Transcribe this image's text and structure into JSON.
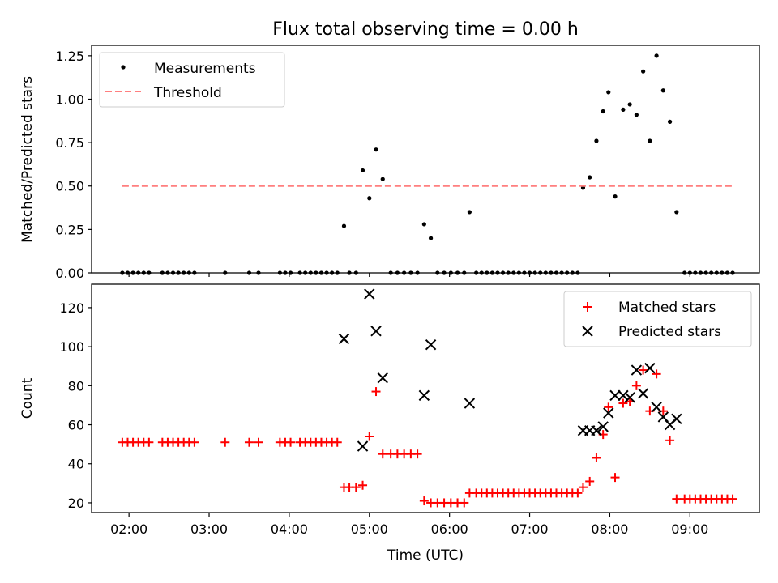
{
  "chart_data": [
    {
      "type": "scatter",
      "title": "Flux total observing time = 0.00 h",
      "xlabel": "",
      "ylabel": "Matched/Predicted stars",
      "xlim": [
        "01:32",
        "09:52"
      ],
      "ylim": [
        0,
        1.31
      ],
      "yticks": [
        0.0,
        0.25,
        0.5,
        0.75,
        1.0,
        1.25
      ],
      "ytick_labels": [
        "0.00",
        "0.25",
        "0.50",
        "0.75",
        "1.00",
        "1.25"
      ],
      "xticks": [
        "02:00",
        "03:00",
        "04:00",
        "05:00",
        "06:00",
        "07:00",
        "08:00",
        "09:00"
      ],
      "legend_position": "upper left",
      "grid": false,
      "series": [
        {
          "name": "Measurements",
          "kind": "points",
          "color": "#000000",
          "points": [
            [
              "01:55",
              0
            ],
            [
              "01:59",
              0
            ],
            [
              "02:03",
              0
            ],
            [
              "02:07",
              0
            ],
            [
              "02:11",
              0
            ],
            [
              "02:15",
              0
            ],
            [
              "02:25",
              0
            ],
            [
              "02:29",
              0
            ],
            [
              "02:33",
              0
            ],
            [
              "02:37",
              0
            ],
            [
              "02:41",
              0
            ],
            [
              "02:45",
              0
            ],
            [
              "02:49",
              0
            ],
            [
              "03:12",
              0
            ],
            [
              "03:30",
              0
            ],
            [
              "03:37",
              0
            ],
            [
              "03:53",
              0
            ],
            [
              "03:57",
              0
            ],
            [
              "04:01",
              0
            ],
            [
              "04:08",
              0
            ],
            [
              "04:12",
              0
            ],
            [
              "04:16",
              0
            ],
            [
              "04:20",
              0
            ],
            [
              "04:24",
              0
            ],
            [
              "04:28",
              0
            ],
            [
              "04:32",
              0
            ],
            [
              "04:36",
              0
            ],
            [
              "04:41",
              0.27
            ],
            [
              "04:45",
              0
            ],
            [
              "04:50",
              0
            ],
            [
              "04:55",
              0.59
            ],
            [
              "05:00",
              0.43
            ],
            [
              "05:05",
              0.71
            ],
            [
              "05:10",
              0.54
            ],
            [
              "05:16",
              0
            ],
            [
              "05:21",
              0
            ],
            [
              "05:26",
              0
            ],
            [
              "05:31",
              0
            ],
            [
              "05:36",
              0
            ],
            [
              "05:41",
              0.28
            ],
            [
              "05:46",
              0.2
            ],
            [
              "05:51",
              0
            ],
            [
              "05:56",
              0
            ],
            [
              "06:01",
              0
            ],
            [
              "06:06",
              0
            ],
            [
              "06:11",
              0
            ],
            [
              "06:15",
              0.35
            ],
            [
              "06:20",
              0
            ],
            [
              "06:24",
              0
            ],
            [
              "06:28",
              0
            ],
            [
              "06:32",
              0
            ],
            [
              "06:36",
              0
            ],
            [
              "06:40",
              0
            ],
            [
              "06:44",
              0
            ],
            [
              "06:48",
              0
            ],
            [
              "06:52",
              0
            ],
            [
              "06:56",
              0
            ],
            [
              "07:00",
              0
            ],
            [
              "07:04",
              0
            ],
            [
              "07:08",
              0
            ],
            [
              "07:12",
              0
            ],
            [
              "07:16",
              0
            ],
            [
              "07:20",
              0
            ],
            [
              "07:24",
              0
            ],
            [
              "07:28",
              0
            ],
            [
              "07:32",
              0
            ],
            [
              "07:36",
              0
            ],
            [
              "07:40",
              0.49
            ],
            [
              "07:45",
              0.55
            ],
            [
              "07:50",
              0.76
            ],
            [
              "07:55",
              0.93
            ],
            [
              "07:59",
              1.04
            ],
            [
              "08:04",
              0.44
            ],
            [
              "08:10",
              0.94
            ],
            [
              "08:15",
              0.97
            ],
            [
              "08:20",
              0.91
            ],
            [
              "08:25",
              1.16
            ],
            [
              "08:30",
              0.76
            ],
            [
              "08:35",
              1.25
            ],
            [
              "08:40",
              1.05
            ],
            [
              "08:45",
              0.87
            ],
            [
              "08:50",
              0.35
            ],
            [
              "08:56",
              0
            ],
            [
              "09:00",
              0
            ],
            [
              "09:04",
              0
            ],
            [
              "09:08",
              0
            ],
            [
              "09:12",
              0
            ],
            [
              "09:16",
              0
            ],
            [
              "09:20",
              0
            ],
            [
              "09:24",
              0
            ],
            [
              "09:28",
              0
            ],
            [
              "09:32",
              0
            ]
          ]
        },
        {
          "name": "Threshold",
          "kind": "dashed-line",
          "color": "#ff7f7f",
          "points": [
            [
              "01:55",
              0.5
            ],
            [
              "09:32",
              0.5
            ]
          ]
        }
      ]
    },
    {
      "type": "scatter",
      "title": "",
      "xlabel": "Time (UTC)",
      "ylabel": "Count",
      "xlim": [
        "01:32",
        "09:52"
      ],
      "ylim": [
        15,
        132
      ],
      "yticks": [
        20,
        40,
        60,
        80,
        100,
        120
      ],
      "ytick_labels": [
        "20",
        "40",
        "60",
        "80",
        "100",
        "120"
      ],
      "xticks": [
        "02:00",
        "03:00",
        "04:00",
        "05:00",
        "06:00",
        "07:00",
        "08:00",
        "09:00"
      ],
      "legend_position": "upper right",
      "grid": false,
      "series": [
        {
          "name": "Matched stars",
          "marker": "plus",
          "color": "#ff0000",
          "points": [
            [
              "01:55",
              51
            ],
            [
              "01:59",
              51
            ],
            [
              "02:03",
              51
            ],
            [
              "02:07",
              51
            ],
            [
              "02:11",
              51
            ],
            [
              "02:15",
              51
            ],
            [
              "02:25",
              51
            ],
            [
              "02:29",
              51
            ],
            [
              "02:33",
              51
            ],
            [
              "02:37",
              51
            ],
            [
              "02:41",
              51
            ],
            [
              "02:45",
              51
            ],
            [
              "02:49",
              51
            ],
            [
              "03:12",
              51
            ],
            [
              "03:30",
              51
            ],
            [
              "03:37",
              51
            ],
            [
              "03:53",
              51
            ],
            [
              "03:57",
              51
            ],
            [
              "04:01",
              51
            ],
            [
              "04:08",
              51
            ],
            [
              "04:12",
              51
            ],
            [
              "04:16",
              51
            ],
            [
              "04:20",
              51
            ],
            [
              "04:24",
              51
            ],
            [
              "04:28",
              51
            ],
            [
              "04:32",
              51
            ],
            [
              "04:36",
              51
            ],
            [
              "04:41",
              28
            ],
            [
              "04:45",
              28
            ],
            [
              "04:50",
              28
            ],
            [
              "04:55",
              29
            ],
            [
              "05:00",
              54
            ],
            [
              "05:05",
              77
            ],
            [
              "05:10",
              45
            ],
            [
              "05:16",
              45
            ],
            [
              "05:21",
              45
            ],
            [
              "05:26",
              45
            ],
            [
              "05:31",
              45
            ],
            [
              "05:36",
              45
            ],
            [
              "05:41",
              21
            ],
            [
              "05:46",
              20
            ],
            [
              "05:51",
              20
            ],
            [
              "05:56",
              20
            ],
            [
              "06:01",
              20
            ],
            [
              "06:06",
              20
            ],
            [
              "06:11",
              20
            ],
            [
              "06:15",
              25
            ],
            [
              "06:20",
              25
            ],
            [
              "06:24",
              25
            ],
            [
              "06:28",
              25
            ],
            [
              "06:32",
              25
            ],
            [
              "06:36",
              25
            ],
            [
              "06:40",
              25
            ],
            [
              "06:44",
              25
            ],
            [
              "06:48",
              25
            ],
            [
              "06:52",
              25
            ],
            [
              "06:56",
              25
            ],
            [
              "07:00",
              25
            ],
            [
              "07:04",
              25
            ],
            [
              "07:08",
              25
            ],
            [
              "07:12",
              25
            ],
            [
              "07:16",
              25
            ],
            [
              "07:20",
              25
            ],
            [
              "07:24",
              25
            ],
            [
              "07:28",
              25
            ],
            [
              "07:32",
              25
            ],
            [
              "07:36",
              25
            ],
            [
              "07:40",
              28
            ],
            [
              "07:45",
              31
            ],
            [
              "07:50",
              43
            ],
            [
              "07:55",
              55
            ],
            [
              "07:59",
              69
            ],
            [
              "08:04",
              33
            ],
            [
              "08:10",
              71
            ],
            [
              "08:15",
              72
            ],
            [
              "08:20",
              80
            ],
            [
              "08:25",
              88
            ],
            [
              "08:30",
              67
            ],
            [
              "08:35",
              86
            ],
            [
              "08:40",
              67
            ],
            [
              "08:45",
              52
            ],
            [
              "08:50",
              22
            ],
            [
              "08:56",
              22
            ],
            [
              "09:00",
              22
            ],
            [
              "09:04",
              22
            ],
            [
              "09:08",
              22
            ],
            [
              "09:12",
              22
            ],
            [
              "09:16",
              22
            ],
            [
              "09:20",
              22
            ],
            [
              "09:24",
              22
            ],
            [
              "09:28",
              22
            ],
            [
              "09:32",
              22
            ]
          ]
        },
        {
          "name": "Predicted stars",
          "marker": "x",
          "color": "#000000",
          "points": [
            [
              "04:41",
              104
            ],
            [
              "04:55",
              49
            ],
            [
              "05:00",
              127
            ],
            [
              "05:05",
              108
            ],
            [
              "05:10",
              84
            ],
            [
              "05:41",
              75
            ],
            [
              "05:46",
              101
            ],
            [
              "06:15",
              71
            ],
            [
              "07:40",
              57
            ],
            [
              "07:45",
              57
            ],
            [
              "07:50",
              57
            ],
            [
              "07:55",
              59
            ],
            [
              "07:59",
              66
            ],
            [
              "08:04",
              75
            ],
            [
              "08:10",
              75
            ],
            [
              "08:15",
              74
            ],
            [
              "08:20",
              88
            ],
            [
              "08:25",
              76
            ],
            [
              "08:30",
              89
            ],
            [
              "08:35",
              69
            ],
            [
              "08:40",
              64
            ],
            [
              "08:45",
              60
            ],
            [
              "08:50",
              63
            ]
          ]
        }
      ]
    }
  ]
}
